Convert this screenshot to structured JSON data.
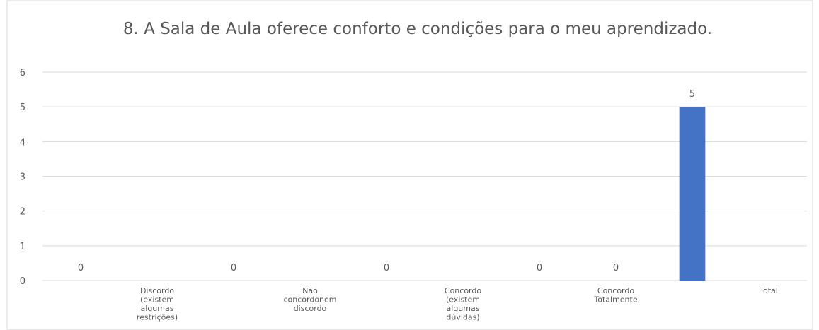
{
  "chart_data": {
    "type": "bar",
    "title": "8. A Sala de Aula oferece conforto e condições para o meu aprendizado.",
    "categories": [
      null,
      "Discordo (existem algumas restrições)",
      null,
      "Não concordonem discordo",
      null,
      "Concordo (existem algumas dúvidas)",
      null,
      "Concordo Totalmente",
      null,
      "Total"
    ],
    "values": [
      0,
      null,
      0,
      null,
      0,
      null,
      0,
      0,
      5,
      null
    ],
    "color": "#4472c4",
    "ylim": [
      0,
      6
    ],
    "yticks": [
      0,
      1,
      2,
      3,
      4,
      5,
      6
    ],
    "grid": true
  }
}
